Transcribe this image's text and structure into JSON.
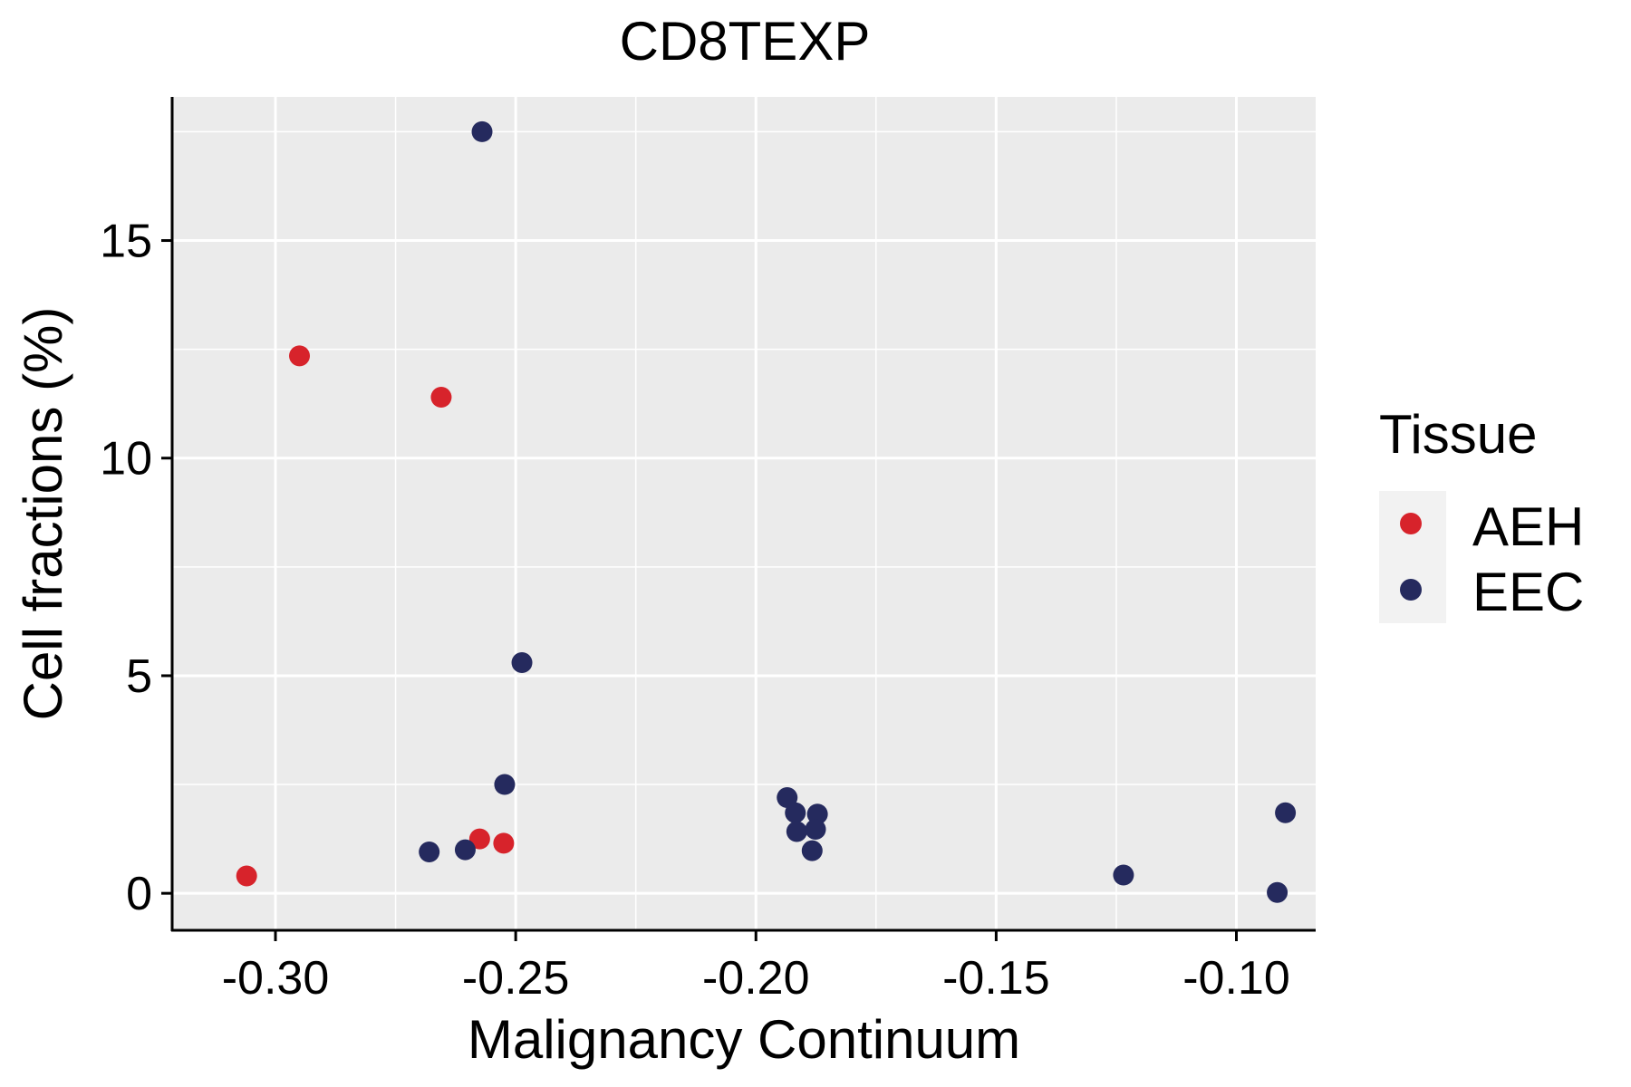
{
  "chart_data": {
    "type": "scatter",
    "title": "CD8TEXP",
    "xlabel": "Malignancy Continuum",
    "ylabel": "Cell fractions (%)",
    "xlim": [
      -0.3215,
      -0.0835
    ],
    "ylim": [
      -0.85,
      18.3
    ],
    "x_ticks": [
      -0.3,
      -0.25,
      -0.2,
      -0.15,
      -0.1
    ],
    "x_tick_labels": [
      "-0.30",
      "-0.25",
      "-0.20",
      "-0.15",
      "-0.10"
    ],
    "y_ticks": [
      0,
      5,
      10,
      15
    ],
    "y_tick_labels": [
      "0",
      "5",
      "10",
      "15"
    ],
    "grid": true,
    "panel_background": "#EBEBEB",
    "legend": {
      "title": "Tissue",
      "position": "right",
      "entries": [
        "AEH",
        "EEC"
      ]
    },
    "colors": {
      "AEH": "#D7232B",
      "EEC": "#252A5E"
    },
    "series": [
      {
        "name": "AEH",
        "points": [
          {
            "x": -0.306,
            "y": 0.4
          },
          {
            "x": -0.295,
            "y": 12.35
          },
          {
            "x": -0.2655,
            "y": 11.4
          },
          {
            "x": -0.2575,
            "y": 1.25
          },
          {
            "x": -0.2525,
            "y": 1.15
          }
        ]
      },
      {
        "name": "EEC",
        "points": [
          {
            "x": -0.257,
            "y": 17.5
          },
          {
            "x": -0.2487,
            "y": 5.3
          },
          {
            "x": -0.2523,
            "y": 2.5
          },
          {
            "x": -0.268,
            "y": 0.95
          },
          {
            "x": -0.2605,
            "y": 1.0
          },
          {
            "x": -0.1935,
            "y": 2.2
          },
          {
            "x": -0.1918,
            "y": 1.85
          },
          {
            "x": -0.1872,
            "y": 1.82
          },
          {
            "x": -0.1915,
            "y": 1.42
          },
          {
            "x": -0.1876,
            "y": 1.47
          },
          {
            "x": -0.1883,
            "y": 0.98
          },
          {
            "x": -0.1235,
            "y": 0.42
          },
          {
            "x": -0.0915,
            "y": 0.02
          },
          {
            "x": -0.0898,
            "y": 1.85
          }
        ]
      }
    ]
  }
}
